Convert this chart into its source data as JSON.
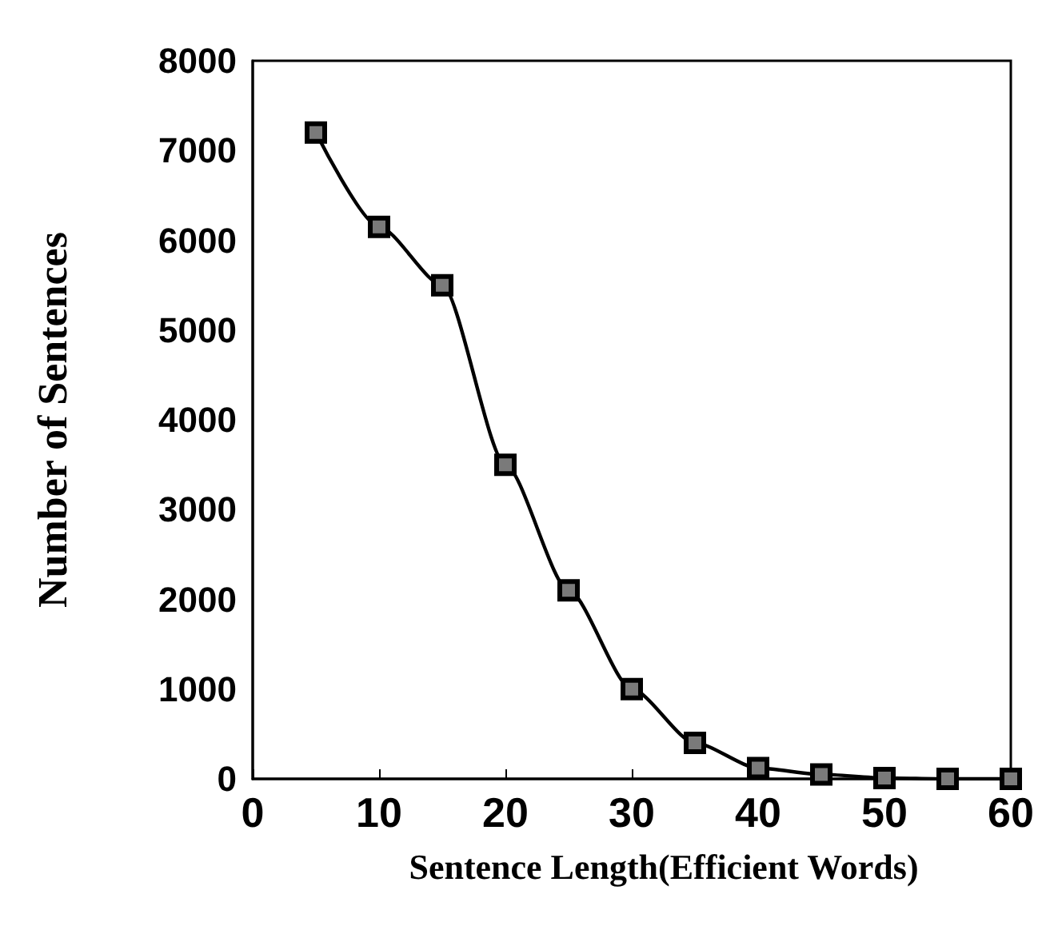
{
  "chart_data": {
    "type": "line",
    "xlabel": "Sentence Length(Efficient Words)",
    "ylabel": "Number of Sentences",
    "x": [
      5,
      10,
      15,
      20,
      25,
      30,
      35,
      40,
      45,
      50,
      55,
      60
    ],
    "series": [
      {
        "color": "#000000",
        "values": [
          7200,
          6150,
          5500,
          3500,
          2100,
          1000,
          400,
          120,
          50,
          10,
          0,
          0
        ]
      }
    ],
    "xlim": [
      0,
      60
    ],
    "xticks": [
      0,
      10,
      20,
      30,
      40,
      50,
      60
    ],
    "ylim": [
      0,
      8000
    ],
    "yticks": [
      0,
      1000,
      2000,
      3000,
      4000,
      5000,
      6000,
      7000,
      8000
    ],
    "marker": "square",
    "line_style": "solid"
  }
}
